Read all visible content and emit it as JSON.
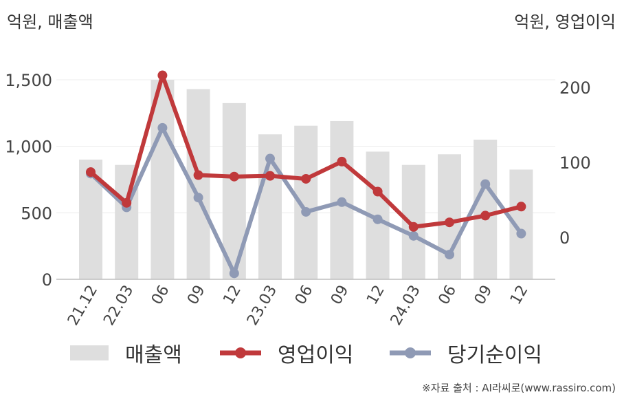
{
  "left_unit": "억원, 매출액",
  "right_unit": "억원, 영업이익",
  "source": "※자료 출처 : AI라씨로(www.rassiro.com)",
  "colors": {
    "revenue": "#dedede",
    "operating": "#c0393b",
    "net": "#8f9ab5",
    "axis": "#bdbdbd",
    "grid": "#ececec"
  },
  "chart_data": {
    "type": "bar",
    "categories": [
      "21.12",
      "22.03",
      "06",
      "09",
      "12",
      "23.03",
      "06",
      "09",
      "12",
      "24.03",
      "06",
      "09",
      "12"
    ],
    "y_left_ticks": [
      "0",
      "500",
      "1,000",
      "1,500"
    ],
    "y_right_ticks": [
      "0",
      "100",
      "200"
    ],
    "ylim_left": [
      0,
      1500
    ],
    "ylim_right": [
      -58,
      220
    ],
    "series": [
      {
        "name": "매출액",
        "type": "bar",
        "axis": "left",
        "values": [
          900,
          860,
          1500,
          1430,
          1325,
          1090,
          1155,
          1190,
          960,
          860,
          940,
          1050,
          825
        ]
      },
      {
        "name": "영업이익",
        "type": "line",
        "axis": "right",
        "values": [
          87,
          46,
          216,
          83,
          81,
          82,
          78,
          101,
          61,
          14,
          20,
          29,
          41
        ]
      },
      {
        "name": "당기순이익",
        "type": "line",
        "axis": "right",
        "values": [
          85,
          40,
          146,
          53,
          -48,
          105,
          34,
          47,
          24,
          2,
          -23,
          71,
          5
        ]
      }
    ],
    "legend": [
      "매출액",
      "영업이익",
      "당기순이익"
    ]
  }
}
